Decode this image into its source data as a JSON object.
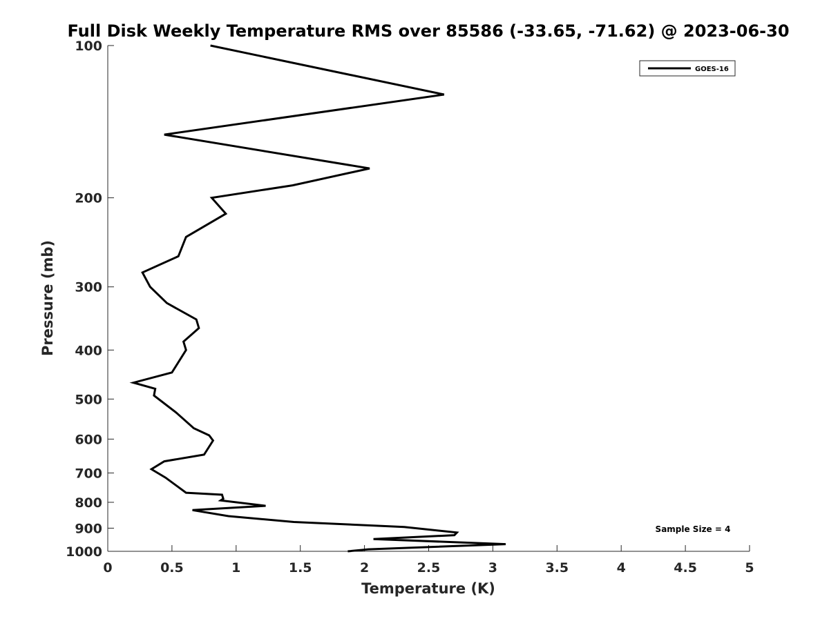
{
  "chart_data": {
    "type": "line",
    "title": "Full Disk Weekly Temperature RMS over 85586 (-33.65, -71.62) @ 2023-06-30",
    "xlabel": "Temperature (K)",
    "ylabel": "Pressure (mb)",
    "xlim": [
      0,
      5
    ],
    "ylim": [
      100,
      1000
    ],
    "y_scale": "log",
    "y_reversed": true,
    "xticks": [
      0,
      0.5,
      1,
      1.5,
      2,
      2.5,
      3,
      3.5,
      4,
      4.5,
      5
    ],
    "xtick_labels": [
      "0",
      "0.5",
      "1",
      "1.5",
      "2",
      "2.5",
      "3",
      "3.5",
      "4",
      "4.5",
      "5"
    ],
    "yticks": [
      100,
      200,
      300,
      400,
      500,
      600,
      700,
      800,
      900,
      1000
    ],
    "ytick_labels": [
      "100",
      "200",
      "300",
      "400",
      "500",
      "600",
      "700",
      "800",
      "900",
      "1000"
    ],
    "grid": false,
    "legend_position": "top-right",
    "annotation": "Sample Size = 4",
    "series": [
      {
        "name": "GOES-16",
        "color": "#000000",
        "x": [
          0.8,
          2.62,
          0.44,
          2.04,
          1.44,
          0.81,
          0.92,
          0.61,
          0.55,
          0.27,
          0.33,
          0.46,
          0.69,
          0.71,
          0.59,
          0.61,
          0.5,
          0.2,
          0.37,
          0.36,
          0.53,
          0.67,
          0.79,
          0.82,
          0.75,
          0.44,
          0.34,
          0.45,
          0.61,
          0.89,
          0.9,
          0.88,
          1.23,
          0.66,
          0.94,
          1.45,
          2.31,
          2.72,
          2.7,
          2.07,
          3.1,
          2.03,
          1.87
        ],
        "y": [
          100,
          125,
          150,
          175,
          189,
          200,
          215,
          239,
          261,
          281,
          300,
          323,
          348,
          362,
          385,
          400,
          443,
          464,
          477,
          492,
          531,
          571,
          590,
          604,
          644,
          664,
          688,
          715,
          766,
          773,
          787,
          793,
          813,
          829,
          852,
          875,
          895,
          918,
          929,
          946,
          968,
          991,
          1000
        ]
      }
    ]
  }
}
